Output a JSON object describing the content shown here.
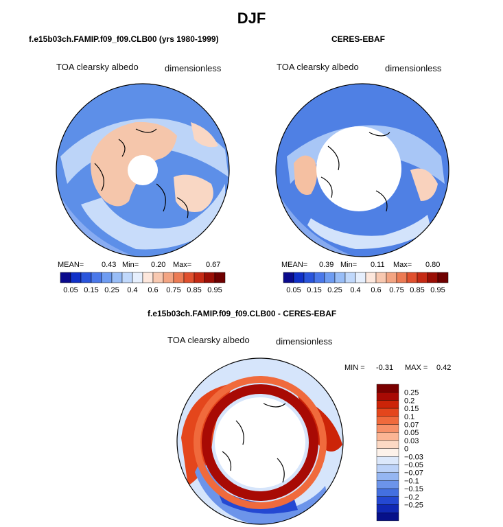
{
  "main_title": "DJF",
  "panels": [
    {
      "title": "f.e15b03ch.FAMIP.f09_f09.CLB00 (yrs 1980-1999)",
      "variable": "TOA clearsky albedo",
      "units": "dimensionless",
      "mean_label": "MEAN=",
      "mean": "0.43",
      "min_label": "Min=",
      "min": "0.20",
      "max_label": "Max=",
      "max": "0.67"
    },
    {
      "title": "CERES-EBAF",
      "variable": "TOA clearsky albedo",
      "units": "dimensionless",
      "mean_label": "MEAN=",
      "mean": "0.39",
      "min_label": "Min=",
      "min": "0.11",
      "max_label": "Max=",
      "max": "0.80"
    }
  ],
  "abs_colorbar": {
    "labels": [
      "0.05",
      "0.15",
      "0.25",
      "0.4",
      "0.6",
      "0.75",
      "0.85",
      "0.95"
    ],
    "colors": [
      "#0a0a8c",
      "#1030c8",
      "#2a55dc",
      "#4a78ea",
      "#6e9cf2",
      "#98bdf7",
      "#c0d8fb",
      "#e6effd",
      "#fde7dc",
      "#f8c8b0",
      "#f3a482",
      "#ec7b54",
      "#e0502e",
      "#c52a14",
      "#9a0e05",
      "#6e0000"
    ]
  },
  "diff": {
    "title": "f.e15b03ch.FAMIP.f09_f09.CLB00 - CERES-EBAF",
    "variable": "TOA clearsky albedo",
    "units": "dimensionless",
    "min_label": "MIN =",
    "min": "-0.31",
    "max_label": "MAX =",
    "max": "0.42"
  },
  "diff_colorbar": {
    "labels": [
      "0.25",
      "0.2",
      "0.15",
      "0.1",
      "0.07",
      "0.05",
      "0.03",
      "0",
      "−0.03",
      "−0.05",
      "−0.07",
      "−0.1",
      "−0.15",
      "−0.2",
      "−0.25"
    ],
    "colors": [
      "#7a0000",
      "#a80a04",
      "#cc2408",
      "#e4461c",
      "#f06a3c",
      "#f79068",
      "#fbb594",
      "#fcd9c4",
      "#fdf2ea",
      "#dce8fb",
      "#bcd2f8",
      "#95b6f2",
      "#6c94ea",
      "#4470e0",
      "#2448d2",
      "#1028b4",
      "#06108a"
    ]
  }
}
